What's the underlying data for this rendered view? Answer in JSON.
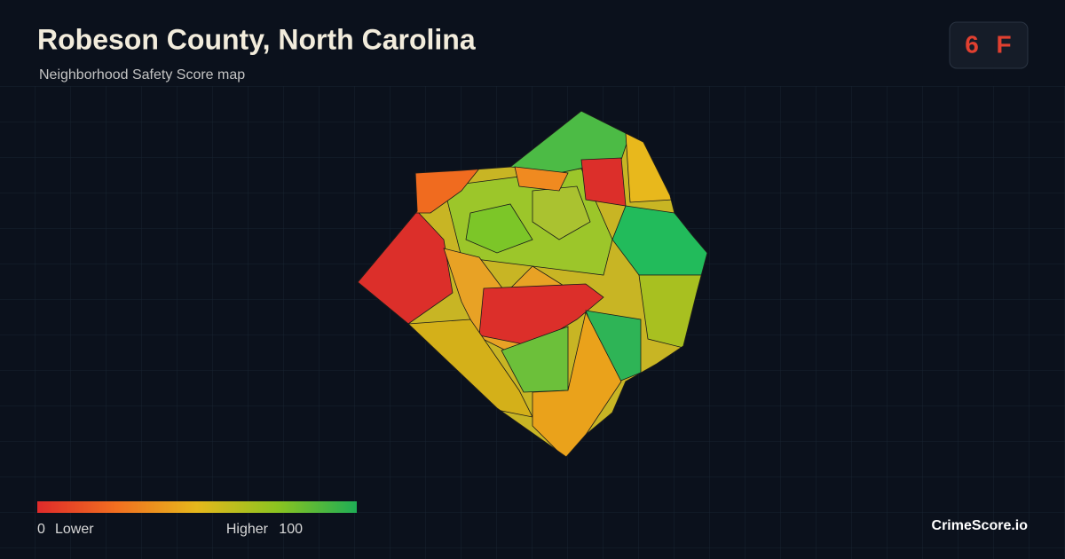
{
  "header": {
    "title": "Robeson County, North Carolina",
    "subtitle": "Neighborhood Safety Score map"
  },
  "badge": {
    "score": 6,
    "grade": "F"
  },
  "legend": {
    "min": 0,
    "max": 100,
    "min_label": "Lower",
    "max_label": "Higher",
    "colors": [
      "#e02a2a",
      "#f27020",
      "#e6b81c",
      "#8cc420",
      "#1fae55"
    ]
  },
  "footer": {
    "brand": "CrimeScore.io"
  }
}
